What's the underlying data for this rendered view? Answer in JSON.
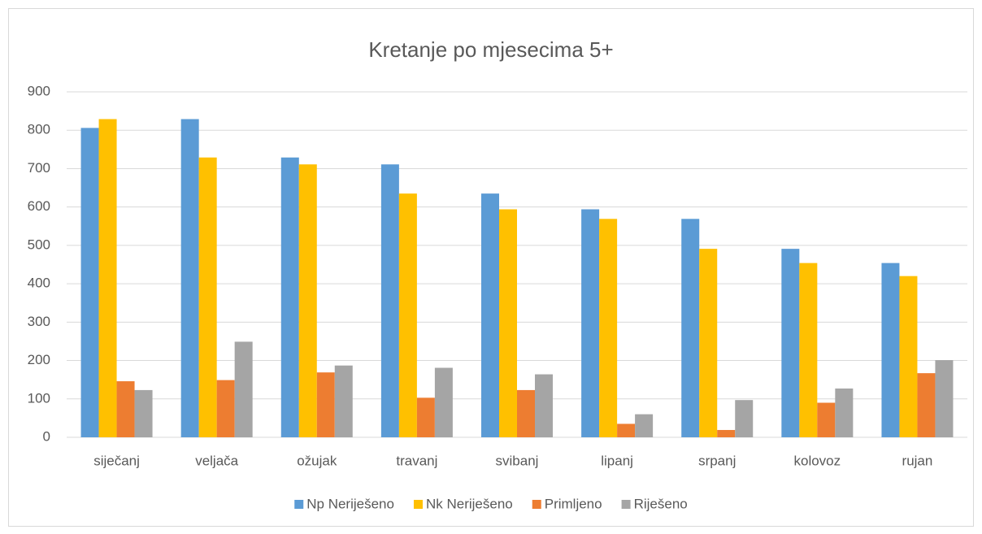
{
  "chart_data": {
    "type": "bar",
    "title": "Kretanje po mjesecima 5+",
    "categories": [
      "siječanj",
      "veljača",
      "ožujak",
      "travanj",
      "svibanj",
      "lipanj",
      "srpanj",
      "kolovoz",
      "rujan"
    ],
    "series": [
      {
        "name": "Np Neriješeno",
        "color": "#5b9bd5",
        "values": [
          806,
          829,
          729,
          711,
          635,
          594,
          569,
          491,
          454
        ]
      },
      {
        "name": "Nk Neriješeno",
        "color": "#ffc000",
        "values": [
          829,
          729,
          711,
          635,
          594,
          569,
          491,
          454,
          420
        ]
      },
      {
        "name": "Primljeno",
        "color": "#ed7d31",
        "values": [
          146,
          149,
          169,
          103,
          123,
          35,
          19,
          90,
          167
        ]
      },
      {
        "name": "Riješeno",
        "color": "#a5a5a5",
        "values": [
          123,
          249,
          187,
          181,
          164,
          60,
          97,
          127,
          201
        ]
      }
    ],
    "ylim": [
      0,
      900
    ],
    "yticks": [
      0,
      100,
      200,
      300,
      400,
      500,
      600,
      700,
      800,
      900
    ],
    "grid": true,
    "legend": "bottom"
  }
}
